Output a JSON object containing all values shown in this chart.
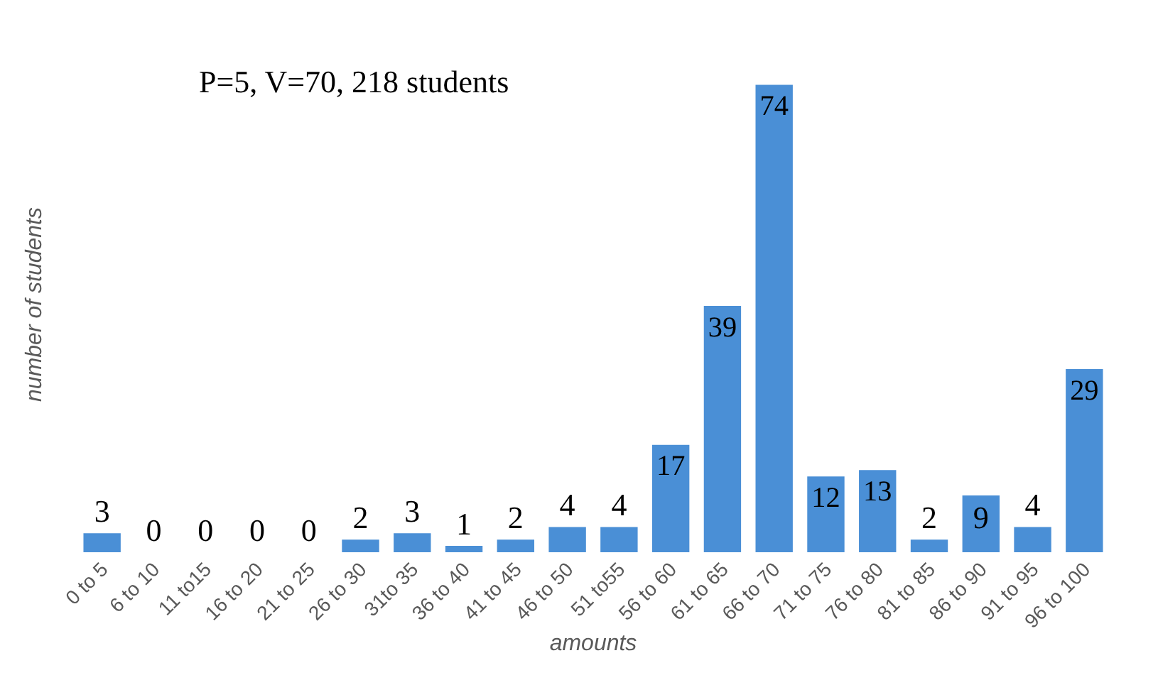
{
  "chart_data": {
    "type": "bar",
    "title": "P=5, V=70, 218 students",
    "xlabel": "amounts",
    "ylabel": "number of students",
    "categories": [
      "0 to 5",
      "6 to 10",
      "11 to15",
      "16 to 20",
      "21 to 25",
      "26 to 30",
      "31to 35",
      "36 to 40",
      "41 to 45",
      "46 to 50",
      "51 to55",
      "56 to 60",
      "61 to 65",
      "66 to 70",
      "71 to 75",
      "76 to 80",
      "81 to 85",
      "86 to 90",
      "91 to 95",
      "96 to 100"
    ],
    "values": [
      3,
      0,
      0,
      0,
      0,
      2,
      3,
      1,
      2,
      4,
      4,
      17,
      39,
      74,
      12,
      13,
      2,
      9,
      4,
      29
    ],
    "color": "#4a8fd6",
    "data_labels": true
  }
}
